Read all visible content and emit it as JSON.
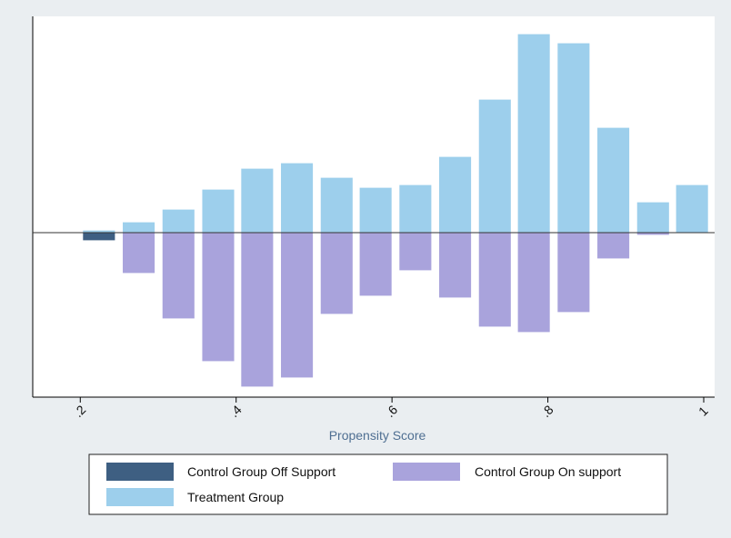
{
  "chart_data": {
    "type": "bar",
    "x_label": "Propensity Score",
    "x": [
      0.224,
      0.275,
      0.326,
      0.377,
      0.427,
      0.478,
      0.529,
      0.579,
      0.63,
      0.681,
      0.732,
      0.782,
      0.833,
      0.884,
      0.935,
      0.985
    ],
    "bar_width": 0.04,
    "series": [
      {
        "name": "Control Group Off Support",
        "color": "#3e5f82",
        "values": [
          -0.08,
          0,
          0,
          0,
          0,
          0,
          0,
          0,
          0,
          0,
          0,
          0,
          0,
          0,
          0,
          0
        ]
      },
      {
        "name": "Control Group On support",
        "color": "#a9a3dc",
        "values": [
          0,
          -0.44,
          -0.94,
          -1.41,
          -1.69,
          -1.59,
          -0.89,
          -0.69,
          -0.41,
          -0.71,
          -1.03,
          -1.09,
          -0.87,
          -0.28,
          -0.02,
          0
        ]
      },
      {
        "name": "Treatment Group",
        "color": "#9dcfec",
        "values": [
          0.02,
          0.11,
          0.25,
          0.47,
          0.7,
          0.76,
          0.6,
          0.49,
          0.52,
          0.83,
          1.46,
          2.18,
          2.08,
          1.15,
          0.33,
          0.52
        ]
      }
    ],
    "xlim": [
      0.139,
      1.014
    ],
    "xticks": [
      {
        "value": 0.2,
        "label": ".2"
      },
      {
        "value": 0.4,
        "label": ".4"
      },
      {
        "value": 0.6,
        "label": ".6"
      },
      {
        "value": 0.8,
        "label": ".8"
      },
      1
    ],
    "ylim": [
      -1.81,
      2.38
    ]
  }
}
